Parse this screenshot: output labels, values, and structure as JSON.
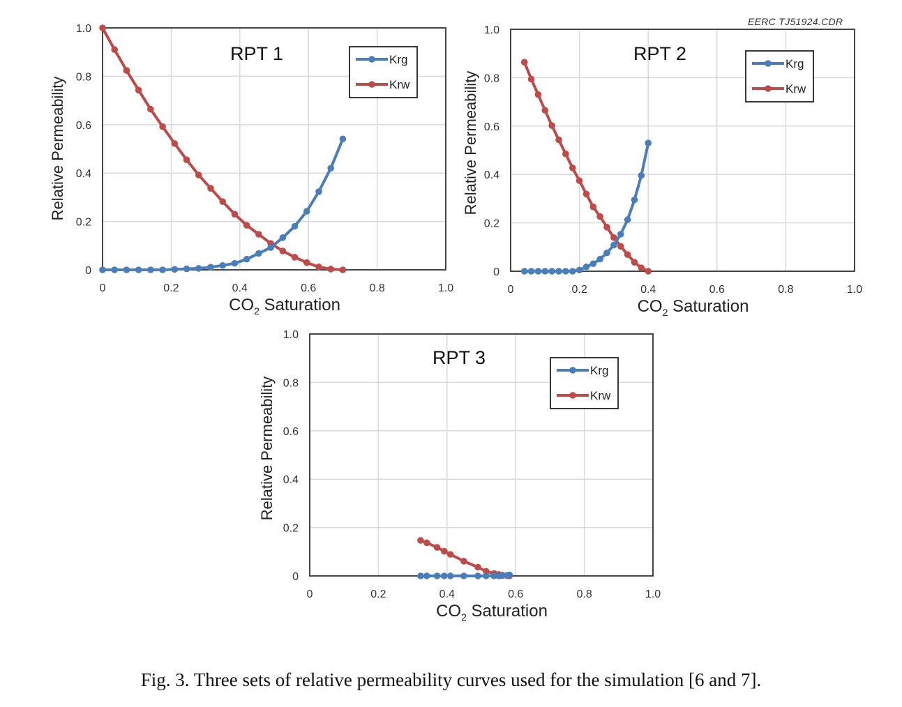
{
  "stamp": "EERC TJ51924.CDR",
  "caption": "Fig. 3. Three sets of relative permeability curves used for the simulation [6 and 7].",
  "colors": {
    "Krg": "#4a7ebb",
    "Krw": "#be4b48"
  },
  "chart_data": [
    {
      "type": "line",
      "title": "RPT 1",
      "xlabel": "CO2 Saturation",
      "ylabel": "Relative Permeability",
      "xlim": [
        0,
        1.0
      ],
      "ylim": [
        0,
        1.0
      ],
      "xticks": [
        "0",
        "0.2",
        "0.4",
        "0.6",
        "0.8",
        "1.0"
      ],
      "yticks": [
        "0",
        "0.2",
        "0.4",
        "0.6",
        "0.8",
        "1.0"
      ],
      "grid": true,
      "legend": "top-right",
      "x": [
        0,
        0.035,
        0.07,
        0.105,
        0.14,
        0.175,
        0.21,
        0.245,
        0.28,
        0.315,
        0.35,
        0.385,
        0.42,
        0.455,
        0.49,
        0.525,
        0.56,
        0.595,
        0.63,
        0.665,
        0.7
      ],
      "series": [
        {
          "name": "Krg",
          "values": [
            0,
            0,
            0,
            0,
            0,
            0,
            0.002,
            0.004,
            0.006,
            0.011,
            0.018,
            0.027,
            0.044,
            0.068,
            0.092,
            0.133,
            0.18,
            0.242,
            0.323,
            0.42,
            0.541
          ]
        },
        {
          "name": "Krw",
          "values": [
            1.0,
            0.91,
            0.824,
            0.743,
            0.664,
            0.592,
            0.522,
            0.455,
            0.392,
            0.337,
            0.282,
            0.23,
            0.184,
            0.147,
            0.109,
            0.078,
            0.052,
            0.03,
            0.012,
            0.003,
            0
          ]
        }
      ]
    },
    {
      "type": "line",
      "title": "RPT 2",
      "xlabel": "CO2 Saturation",
      "ylabel": "Relative Permeability",
      "xlim": [
        0,
        1.0
      ],
      "ylim": [
        0,
        1.0
      ],
      "xticks": [
        "0",
        "0.2",
        "0.4",
        "0.6",
        "0.8",
        "1.0"
      ],
      "yticks": [
        "0",
        "0.2",
        "0.4",
        "0.6",
        "0.8",
        "1.0"
      ],
      "grid": true,
      "legend": "top-right",
      "x": [
        0.04,
        0.06,
        0.08,
        0.1,
        0.12,
        0.14,
        0.16,
        0.18,
        0.2,
        0.22,
        0.24,
        0.26,
        0.28,
        0.3,
        0.32,
        0.34,
        0.36,
        0.38,
        0.4
      ],
      "series": [
        {
          "name": "Krg",
          "values": [
            0,
            0,
            0,
            0,
            0,
            0,
            0,
            0,
            0.005,
            0.018,
            0.031,
            0.05,
            0.076,
            0.108,
            0.153,
            0.213,
            0.295,
            0.396,
            0.53
          ]
        },
        {
          "name": "Krw",
          "values": [
            0.864,
            0.794,
            0.73,
            0.665,
            0.602,
            0.543,
            0.485,
            0.427,
            0.374,
            0.319,
            0.266,
            0.226,
            0.182,
            0.139,
            0.103,
            0.069,
            0.037,
            0.014,
            0
          ]
        }
      ]
    },
    {
      "type": "line",
      "title": "RPT 3",
      "xlabel": "CO2 Saturation",
      "ylabel": "Relative Permeability",
      "xlim": [
        0,
        1.0
      ],
      "ylim": [
        0,
        1.0
      ],
      "xticks": [
        "0",
        "0.2",
        "0.4",
        "0.6",
        "0.8",
        "1.0"
      ],
      "yticks": [
        "0",
        "0.2",
        "0.4",
        "0.6",
        "0.8",
        "1.0"
      ],
      "grid": true,
      "legend": "top-right",
      "x": [
        0.323,
        0.341,
        0.371,
        0.392,
        0.41,
        0.449,
        0.49,
        0.514,
        0.537,
        0.551,
        0.561,
        0.575,
        0.582
      ],
      "series": [
        {
          "name": "Krg",
          "values": [
            0,
            0,
            0,
            0,
            0,
            0,
            0,
            0,
            0,
            0,
            0.001,
            0.002,
            0.004
          ]
        },
        {
          "name": "Krw",
          "values": [
            0.147,
            0.137,
            0.118,
            0.102,
            0.089,
            0.061,
            0.036,
            0.019,
            0.01,
            0.006,
            0.003,
            0.001,
            0
          ]
        }
      ]
    }
  ]
}
